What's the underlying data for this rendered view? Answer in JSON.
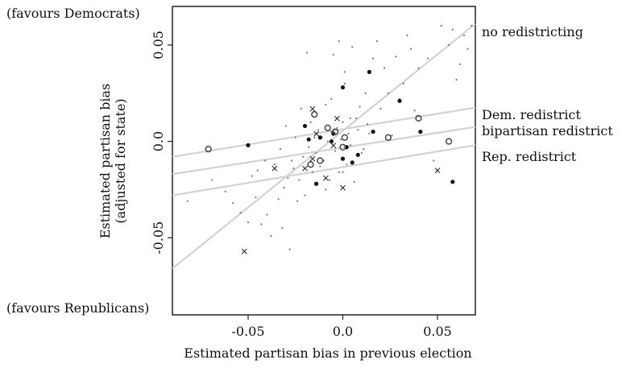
{
  "chart_data": {
    "type": "scatter",
    "xlabel": "Estimated partisan bias in previous election",
    "ylabel": [
      "Estimated partisan bias",
      "(adjusted for state)"
    ],
    "x_ticks": [
      -0.05,
      0.0,
      0.05
    ],
    "x_tick_labels": [
      "-0.05",
      "0.0",
      "0.05"
    ],
    "y_ticks": [
      -0.05,
      0.0,
      0.05
    ],
    "y_tick_labels": [
      "-0.05",
      "0.0",
      "0.05"
    ],
    "xlim": [
      -0.09,
      0.07
    ],
    "ylim": [
      -0.09,
      0.07
    ],
    "corner_labels": {
      "top": "(favours Democrats)",
      "bottom": "(favours Republicans)"
    },
    "lines": [
      {
        "label": "no redistricting",
        "x": [
          -0.09,
          0.07
        ],
        "y": [
          -0.066,
          0.061
        ]
      },
      {
        "label": "Dem. redistrict",
        "x": [
          -0.09,
          0.07
        ],
        "y": [
          -0.008,
          0.0175
        ]
      },
      {
        "label": "bipartisan redistrict",
        "x": [
          -0.09,
          0.07
        ],
        "y": [
          -0.017,
          0.0075
        ]
      },
      {
        "label": "Rep. redistrict",
        "x": [
          -0.09,
          0.07
        ],
        "y": [
          -0.028,
          -0.002
        ]
      }
    ],
    "series": [
      {
        "marker": "small-dot",
        "points": [
          [
            -0.082,
            -0.031
          ],
          [
            -0.069,
            -0.02
          ],
          [
            -0.062,
            -0.026
          ],
          [
            -0.058,
            -0.032
          ],
          [
            -0.054,
            -0.037
          ],
          [
            -0.05,
            -0.042
          ],
          [
            -0.048,
            -0.018
          ],
          [
            -0.046,
            -0.029
          ],
          [
            -0.043,
            -0.043
          ],
          [
            -0.041,
            -0.01
          ],
          [
            -0.038,
            -0.049
          ],
          [
            -0.036,
            -0.012
          ],
          [
            -0.034,
            -0.03
          ],
          [
            -0.033,
            -0.004
          ],
          [
            -0.031,
            -0.024
          ],
          [
            -0.029,
            -0.019
          ],
          [
            -0.028,
            -0.056
          ],
          [
            -0.027,
            -0.01
          ],
          [
            -0.025,
            0.002
          ],
          [
            -0.024,
            -0.031
          ],
          [
            -0.023,
            -0.02
          ],
          [
            -0.022,
            0.017
          ],
          [
            -0.021,
            -0.008
          ],
          [
            -0.02,
            -0.028
          ],
          [
            -0.019,
            0.046
          ],
          [
            -0.018,
            -0.003
          ],
          [
            -0.017,
            0.01
          ],
          [
            -0.016,
            -0.016
          ],
          [
            -0.015,
            0.002
          ],
          [
            -0.014,
            -0.006
          ],
          [
            -0.013,
            0.006
          ],
          [
            -0.012,
            -0.013
          ],
          [
            -0.011,
            0.002
          ],
          [
            -0.01,
            -0.01
          ],
          [
            -0.009,
            0.019
          ],
          [
            -0.008,
            0.0
          ],
          [
            -0.007,
            -0.02
          ],
          [
            -0.006,
            0.005
          ],
          [
            -0.005,
            0.045
          ],
          [
            -0.004,
            -0.005
          ],
          [
            -0.003,
            0.007
          ],
          [
            -0.002,
            -0.016
          ],
          [
            -0.001,
            0.001
          ],
          [
            0.0,
            0.01
          ],
          [
            0.001,
            0.03
          ],
          [
            0.002,
            -0.012
          ],
          [
            0.003,
            0.004
          ],
          [
            0.004,
            -0.002
          ],
          [
            0.005,
            0.049
          ],
          [
            0.006,
            -0.021
          ],
          [
            0.007,
            0.012
          ],
          [
            0.008,
            0.006
          ],
          [
            0.009,
            0.018
          ],
          [
            0.01,
            -0.006
          ],
          [
            0.011,
            -0.004
          ],
          [
            0.012,
            0.025
          ],
          [
            0.014,
            0.004
          ],
          [
            0.016,
            0.043
          ],
          [
            0.018,
            0.052
          ],
          [
            0.02,
            0.017
          ],
          [
            0.022,
            0.038
          ],
          [
            0.024,
            0.025
          ],
          [
            0.026,
            0.003
          ],
          [
            0.028,
            0.044
          ],
          [
            0.03,
            0.022
          ],
          [
            0.032,
            0.03
          ],
          [
            0.034,
            0.055
          ],
          [
            0.036,
            0.048
          ],
          [
            0.038,
            0.016
          ],
          [
            0.04,
            0.038
          ],
          [
            0.045,
            0.043
          ],
          [
            0.048,
            -0.01
          ],
          [
            0.052,
            0.06
          ],
          [
            0.056,
            0.05
          ],
          [
            0.058,
            0.058
          ],
          [
            0.06,
            0.032
          ],
          [
            0.062,
            0.04
          ],
          [
            0.064,
            0.055
          ],
          [
            0.066,
            0.048
          ],
          [
            0.068,
            0.06
          ],
          [
            -0.03,
            0.008
          ],
          [
            -0.026,
            -0.014
          ],
          [
            -0.009,
            -0.025
          ],
          [
            0.0,
            -0.016
          ],
          [
            0.004,
            0.012
          ],
          [
            0.013,
            0.009
          ],
          [
            -0.006,
            0.022
          ],
          [
            0.001,
            0.036
          ],
          [
            -0.045,
            -0.015
          ],
          [
            -0.04,
            -0.038
          ],
          [
            -0.032,
            -0.045
          ],
          [
            -0.002,
            0.052
          ]
        ]
      },
      {
        "marker": "filled-dot",
        "points": [
          [
            -0.05,
            -0.002
          ],
          [
            -0.018,
            0.001
          ],
          [
            -0.014,
            -0.022
          ],
          [
            -0.012,
            0.002
          ],
          [
            -0.006,
            0.0
          ],
          [
            -0.005,
            0.004
          ],
          [
            0.0,
            0.028
          ],
          [
            0.002,
            -0.003
          ],
          [
            0.005,
            -0.011
          ],
          [
            0.008,
            -0.007
          ],
          [
            0.014,
            0.036
          ],
          [
            0.016,
            0.005
          ],
          [
            0.03,
            0.021
          ],
          [
            0.041,
            0.005
          ],
          [
            0.058,
            -0.021
          ],
          [
            -0.02,
            0.008
          ],
          [
            0.0,
            -0.009
          ]
        ]
      },
      {
        "marker": "open-circle",
        "points": [
          [
            -0.071,
            -0.004
          ],
          [
            -0.015,
            0.014
          ],
          [
            -0.008,
            0.007
          ],
          [
            -0.004,
            0.005
          ],
          [
            0.0,
            -0.003
          ],
          [
            0.024,
            0.002
          ],
          [
            0.04,
            0.012
          ],
          [
            0.056,
            0.0
          ],
          [
            -0.017,
            -0.012
          ],
          [
            -0.012,
            -0.01
          ],
          [
            0.001,
            0.002
          ]
        ]
      },
      {
        "marker": "x",
        "points": [
          [
            -0.052,
            -0.057
          ],
          [
            -0.036,
            -0.014
          ],
          [
            -0.02,
            -0.014
          ],
          [
            -0.016,
            -0.009
          ],
          [
            -0.014,
            0.004
          ],
          [
            -0.009,
            -0.019
          ],
          [
            -0.005,
            -0.002
          ],
          [
            0.0,
            -0.024
          ],
          [
            0.05,
            -0.015
          ],
          [
            -0.016,
            0.017
          ],
          [
            -0.003,
            0.012
          ]
        ]
      }
    ]
  }
}
